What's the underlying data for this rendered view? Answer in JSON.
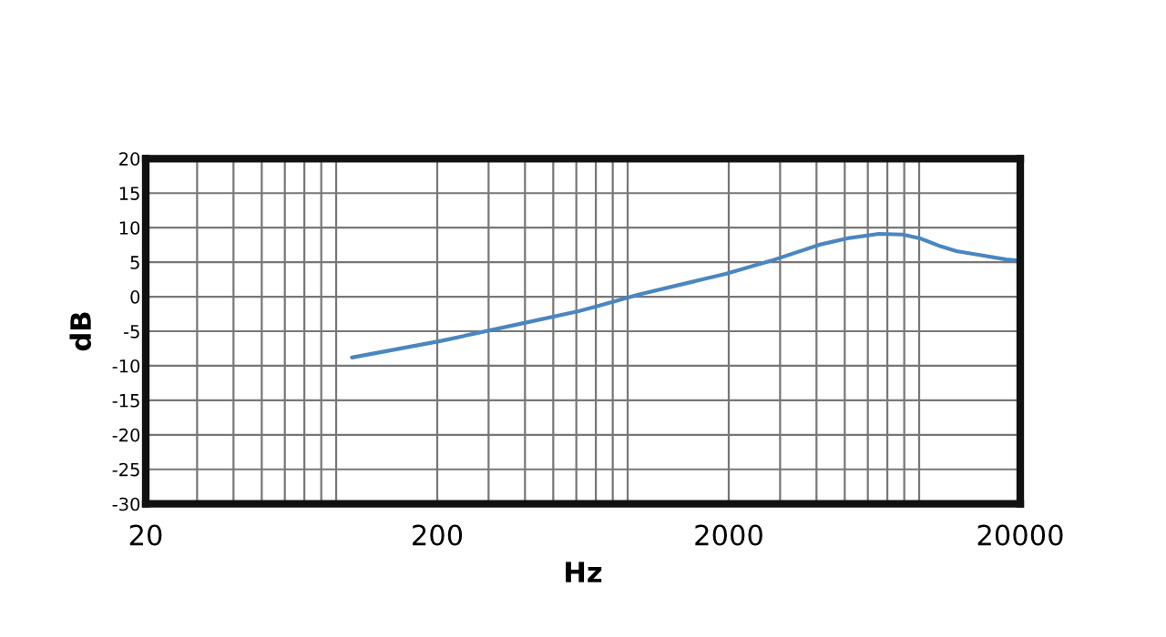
{
  "chart_data": {
    "type": "line",
    "xlabel": "Hz",
    "ylabel": "dB",
    "log": "x",
    "grid": true,
    "xlim": [
      20,
      20000
    ],
    "ylim": [
      -30,
      20
    ],
    "xticks": [
      20,
      {
        "value": 30,
        "label": null
      },
      {
        "value": 40,
        "label": null
      },
      {
        "value": 50,
        "label": null
      },
      {
        "value": 60,
        "label": null
      },
      {
        "value": 70,
        "label": null
      },
      {
        "value": 80,
        "label": null
      },
      {
        "value": 90,
        "label": null
      },
      200,
      {
        "value": 300,
        "label": null
      },
      {
        "value": 400,
        "label": null
      },
      {
        "value": 500,
        "label": null
      },
      {
        "value": 600,
        "label": null
      },
      {
        "value": 700,
        "label": null
      },
      {
        "value": 800,
        "label": null
      },
      {
        "value": 900,
        "label": null
      },
      2000,
      {
        "value": 3000,
        "label": null
      },
      {
        "value": 4000,
        "label": null
      },
      {
        "value": 5000,
        "label": null
      },
      {
        "value": 6000,
        "label": null
      },
      {
        "value": 7000,
        "label": null
      },
      {
        "value": 8000,
        "label": null
      },
      {
        "value": 9000,
        "label": null
      },
      20000
    ],
    "yticks": [
      -30,
      -25,
      -20,
      -15,
      -10,
      -5,
      0,
      5,
      10,
      15,
      20
    ],
    "series": [
      {
        "color": "#4a86c0",
        "x": [
          102,
          206,
          398,
          610,
          703,
          980,
          1950,
          2790,
          4070,
          5170,
          6550,
          7910,
          9130,
          10500,
          12100,
          14700,
          17900,
          20000
        ],
        "values": [
          -8.8,
          -6.4,
          -3.8,
          -2.1,
          -1.4,
          0.3,
          3.3,
          5.2,
          7.5,
          8.5,
          9.1,
          9.0,
          8.4,
          7.4,
          6.6,
          6.0,
          5.4,
          5.2
        ]
      }
    ]
  }
}
